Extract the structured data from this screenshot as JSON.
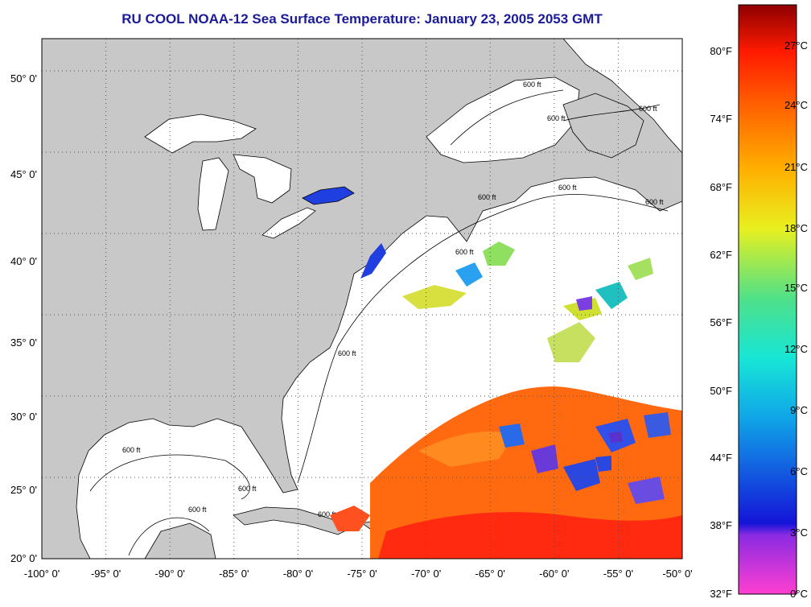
{
  "title": "RU COOL  NOAA-12  Sea Surface Temperature:  January 23, 2005 2053 GMT",
  "colors": {
    "title": "#1b1b9a",
    "land": "#c8c8c8",
    "water": "#ffffff",
    "coast": "#000000",
    "grid": "#555555"
  },
  "map": {
    "lon_range": [
      -100,
      -50
    ],
    "lat_range": [
      20,
      52
    ],
    "lon_ticks": [
      "-100° 0'",
      "-95° 0'",
      "-90° 0'",
      "-85° 0'",
      "-80° 0'",
      "-75° 0'",
      "-70° 0'",
      "-65° 0'",
      "-60° 0'",
      "-55° 0'",
      "-50° 0'"
    ],
    "lat_ticks": [
      "20° 0'",
      "25° 0'",
      "30° 0'",
      "35° 0'",
      "40° 0'",
      "45° 0'",
      "50° 0'"
    ],
    "contour_labels": [
      "600 ft",
      "600 ft",
      "600 ft",
      "600 ft",
      "600 ft",
      "600 ft",
      "600 ft",
      "600 ft",
      "600 ft",
      "600 ft",
      "600 ft",
      "600 ft"
    ]
  },
  "colorbar": {
    "fahrenheit": [
      "80°F",
      "74°F",
      "68°F",
      "62°F",
      "56°F",
      "50°F",
      "44°F",
      "38°F",
      "32°F"
    ],
    "celsius": [
      "27°C",
      "24°C",
      "21°C",
      "18°C",
      "15°C",
      "12°C",
      "9°C",
      "6°C",
      "3°C",
      "0°C"
    ]
  }
}
